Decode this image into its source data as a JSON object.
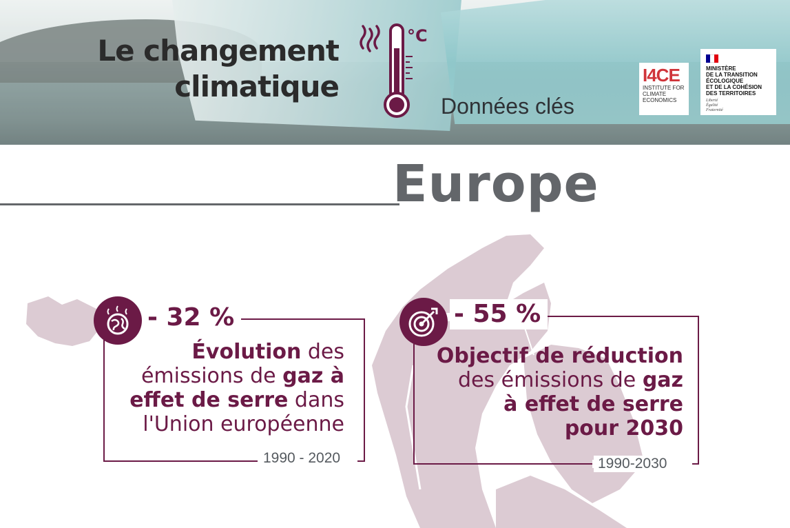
{
  "header": {
    "title_line1": "Le changement",
    "title_line2": "climatique",
    "subtitle": "Données clés",
    "thermometer_unit": "°C",
    "accent_color": "#6b1a46"
  },
  "logos": {
    "i4ce_mark": "I4CE",
    "i4ce_name": "INSTITUTE FOR CLIMATE ECONOMICS",
    "ministry_name": "MINISTÈRE\nDE LA TRANSITION\nÉCOLOGIQUE\nET DE LA COHÉSION\nDES TERRITOIRES",
    "ministry_motto": "Liberté\nÉgalité\nFraternité"
  },
  "region": {
    "name": "Europe",
    "text_color": "#63666a",
    "map_color": "#dccbd3"
  },
  "cards": [
    {
      "icon": "globe-heat-icon",
      "value": "- 32 %",
      "desc_b1": "Évolution",
      "desc_t1": " des",
      "desc_t2": "émissions de ",
      "desc_b2": "gaz à",
      "desc_b3": "effet de serre",
      "desc_t3": " dans",
      "desc_t4": "l'Union européenne",
      "period": "1990 - 2020"
    },
    {
      "icon": "target-arrow-icon",
      "value": "- 55 %",
      "desc_b1": "Objectif de réduction",
      "desc_t2": "des émissions de ",
      "desc_b2": "gaz",
      "desc_b3": "à effet de serre",
      "desc_b4": "pour 2030",
      "period": "1990-2030"
    }
  ]
}
